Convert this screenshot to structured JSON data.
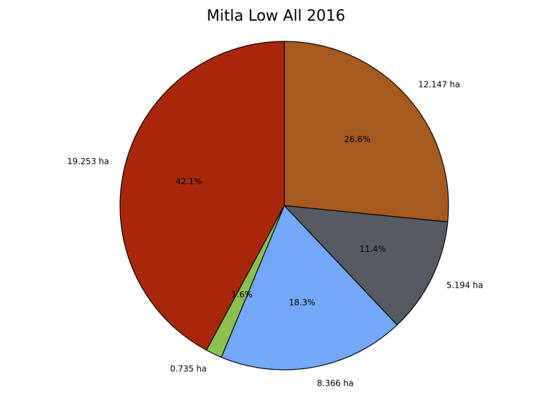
{
  "chart_data": {
    "type": "pie",
    "title": "Mitla Low All 2016",
    "slices": [
      {
        "value": 12.147,
        "label": "12.147 ha",
        "percent_label": "26.6%",
        "color": "#A65A1E"
      },
      {
        "value": 5.194,
        "label": "5.194 ha",
        "percent_label": "11.4%",
        "color": "#555A63"
      },
      {
        "value": 8.366,
        "label": "8.366 ha",
        "percent_label": "18.3%",
        "color": "#73A8FA"
      },
      {
        "value": 0.735,
        "label": "0.735 ha",
        "percent_label": "1.6%",
        "color": "#8BC04C"
      },
      {
        "value": 19.253,
        "label": "19.253 ha",
        "percent_label": "42.1%",
        "color": "#A8270A"
      }
    ],
    "start_angle_deg": 90,
    "direction": "clockwise",
    "legend": "none"
  }
}
